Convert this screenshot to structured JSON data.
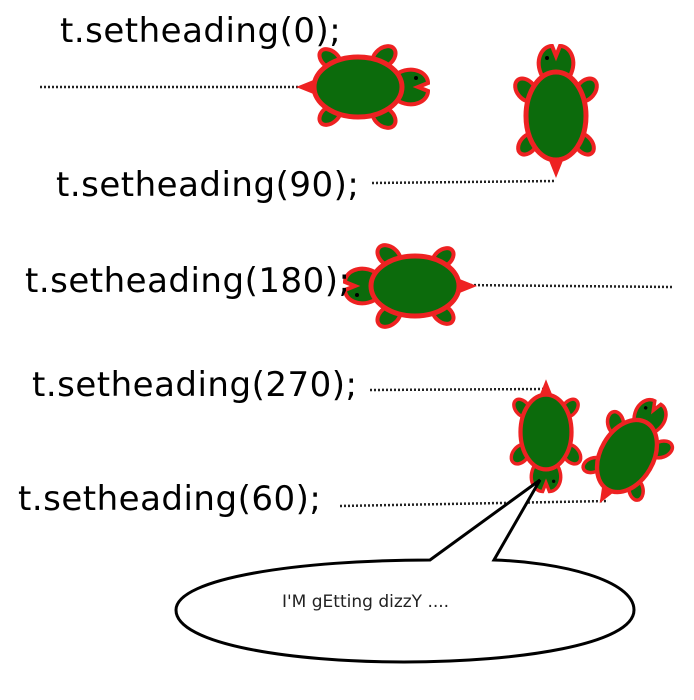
{
  "labels": {
    "heading_0": "t.setheading(0);",
    "heading_90": "t.setheading(90);",
    "heading_180": "t.setheading(180);",
    "heading_270": "t.setheading(270);",
    "heading_60": "t.setheading(60);"
  },
  "speech_bubble": {
    "text": "I'M gEtting dizzY ...."
  },
  "colors": {
    "turtle_body": "#0c6b0c",
    "turtle_outline": "#ee2222",
    "dotted_line": "#222222"
  }
}
